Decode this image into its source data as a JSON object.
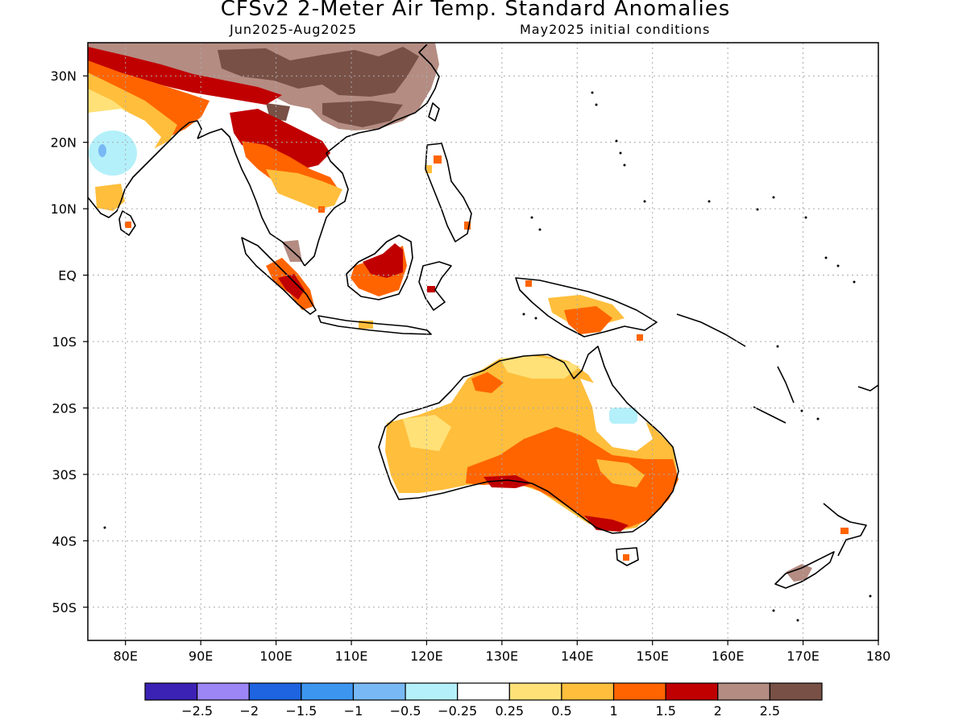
{
  "title": "CFSv2 2-Meter Air Temp. Standard Anomalies",
  "subtitle_left": "Jun2025-Aug2025",
  "subtitle_right": "May2025 initial conditions",
  "map": {
    "lon_range": [
      75,
      180
    ],
    "lat_range": [
      -55,
      35
    ],
    "lat_ticks": [
      {
        "lat": 30,
        "label": "30N"
      },
      {
        "lat": 20,
        "label": "20N"
      },
      {
        "lat": 10,
        "label": "10N"
      },
      {
        "lat": 0,
        "label": "EQ"
      },
      {
        "lat": -10,
        "label": "10S"
      },
      {
        "lat": -20,
        "label": "20S"
      },
      {
        "lat": -30,
        "label": "30S"
      },
      {
        "lat": -40,
        "label": "40S"
      },
      {
        "lat": -50,
        "label": "50S"
      }
    ],
    "lon_ticks": [
      {
        "lon": 80,
        "label": "80E"
      },
      {
        "lon": 90,
        "label": "90E"
      },
      {
        "lon": 100,
        "label": "100E"
      },
      {
        "lon": 110,
        "label": "110E"
      },
      {
        "lon": 120,
        "label": "120E"
      },
      {
        "lon": 130,
        "label": "130E"
      },
      {
        "lon": 140,
        "label": "140E"
      },
      {
        "lon": 150,
        "label": "150E"
      },
      {
        "lon": 160,
        "label": "160E"
      },
      {
        "lon": 170,
        "label": "170E"
      },
      {
        "lon": 180,
        "label": "180"
      }
    ]
  },
  "colorbar": {
    "colors": [
      "#3b22b4",
      "#9c85f5",
      "#1e64e0",
      "#3c96f0",
      "#78b9f5",
      "#b4f0fa",
      "#ffffff",
      "#ffe178",
      "#ffbe3c",
      "#ff6400",
      "#c00000",
      "#b48c82",
      "#785046"
    ],
    "labels": [
      "-2.5",
      "-2",
      "-1.5",
      "-1",
      "-0.5",
      "-0.25",
      "0.25",
      "0.5",
      "1",
      "1.5",
      "2",
      "2.5"
    ]
  }
}
